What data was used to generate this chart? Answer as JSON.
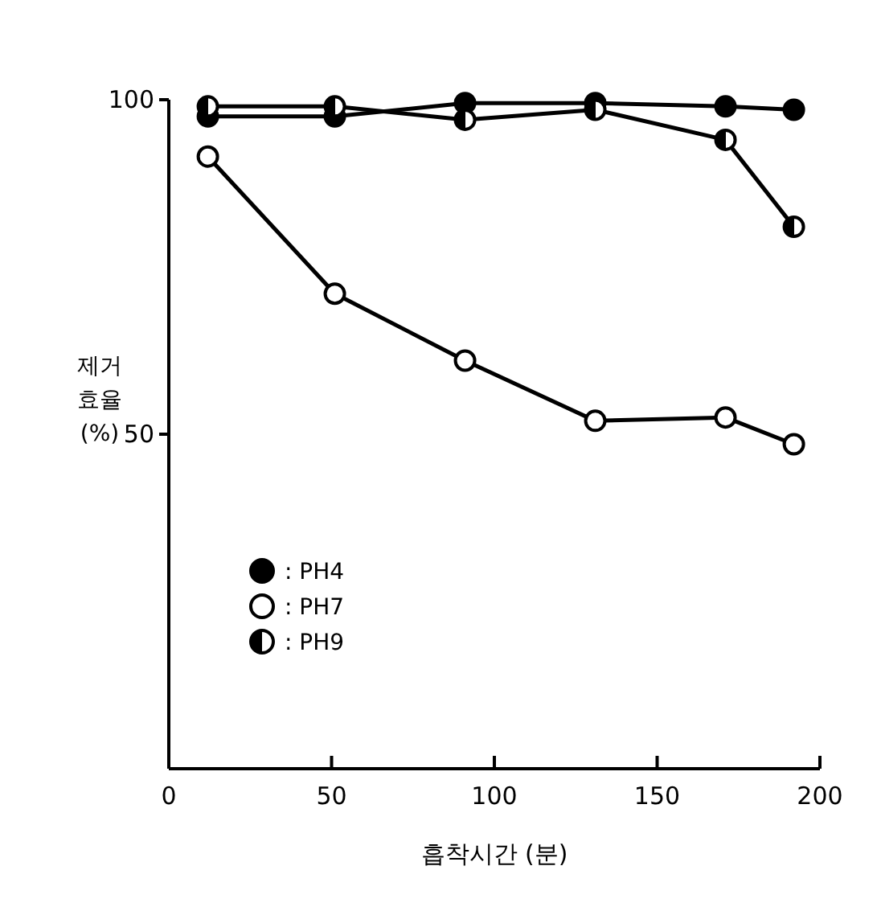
{
  "chart_data": {
    "type": "line",
    "xlabel": "흡착시간 (분)",
    "ylabel": "제거\n효율\n(%)",
    "xlim": [
      0,
      200
    ],
    "xticks": [
      0,
      50,
      100,
      150,
      200
    ],
    "ylim": [
      0,
      100
    ],
    "yticks": [
      50,
      100
    ],
    "marker": "circle",
    "line_style": "solid",
    "grid": false,
    "legend": "bottom left",
    "x": [
      12,
      51,
      91,
      131,
      171,
      192
    ],
    "series": [
      {
        "name": ": PH4",
        "color": "#000000",
        "values": [
          97.5,
          97.5,
          99.5,
          99.5,
          99,
          98.5
        ]
      },
      {
        "name": ": PH7",
        "color": "#000000",
        "values": [
          91.5,
          71,
          61,
          52,
          52.5,
          48.5
        ]
      },
      {
        "name": ": PH9",
        "color": "#000000",
        "values": [
          99,
          99,
          97,
          98.5,
          94,
          81
        ]
      }
    ]
  }
}
